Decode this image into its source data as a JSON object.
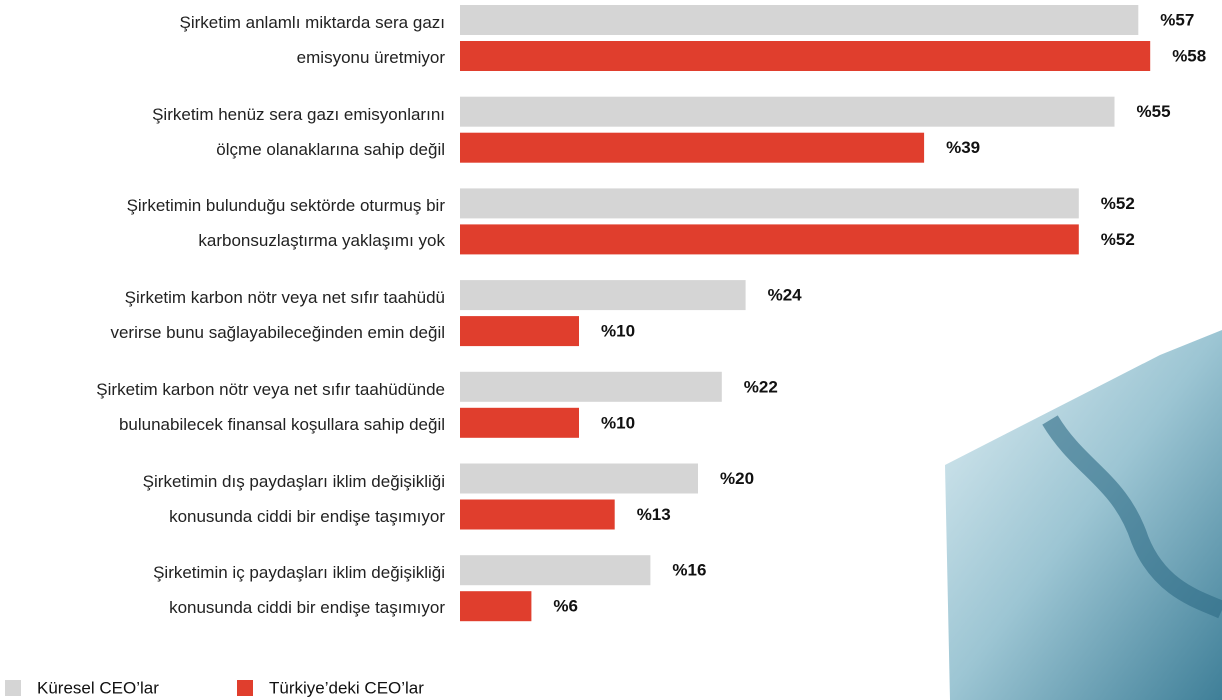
{
  "chart_data": {
    "type": "bar",
    "orientation": "horizontal",
    "categories": [
      "Şirketim anlamlı miktarda sera gazı\nemisyonu üretmiyor",
      "Şirketim henüz sera gazı emisyonlarını\nölçme olanaklarına sahip değil",
      "Şirketimin bulunduğu sektörde oturmuş bir\nkarbonsuzlaştırma yaklaşımı yok",
      "Şirketim karbon nötr veya net sıfır taahüdü\nverirse bunu sağlayabileceğinden emin değil",
      "Şirketim karbon nötr veya net sıfır taahüdünde\nbulunabilecek finansal koşullara sahip değil",
      "Şirketimin dış paydaşları iklim değişikliği\nkonusunda ciddi bir endişe taşımıyor",
      "Şirketimin iç paydaşları iklim değişikliği\nkonusunda ciddi bir endişe taşımıyor"
    ],
    "series": [
      {
        "name": "Küresel CEO’lar",
        "color": "#d5d5d5",
        "values": [
          57,
          55,
          52,
          24,
          22,
          20,
          16
        ],
        "value_labels": [
          "%57",
          "%55",
          "%52",
          "%24",
          "%22",
          "%20",
          "%16"
        ]
      },
      {
        "name": "Türkiye’deki CEO’lar",
        "color": "#e03e2d",
        "values": [
          58,
          39,
          52,
          10,
          10,
          13,
          6
        ],
        "value_labels": [
          "%58",
          "%39",
          "%52",
          "%10",
          "%10",
          "%13",
          "%6"
        ]
      }
    ],
    "xlim": [
      0,
      60
    ]
  }
}
